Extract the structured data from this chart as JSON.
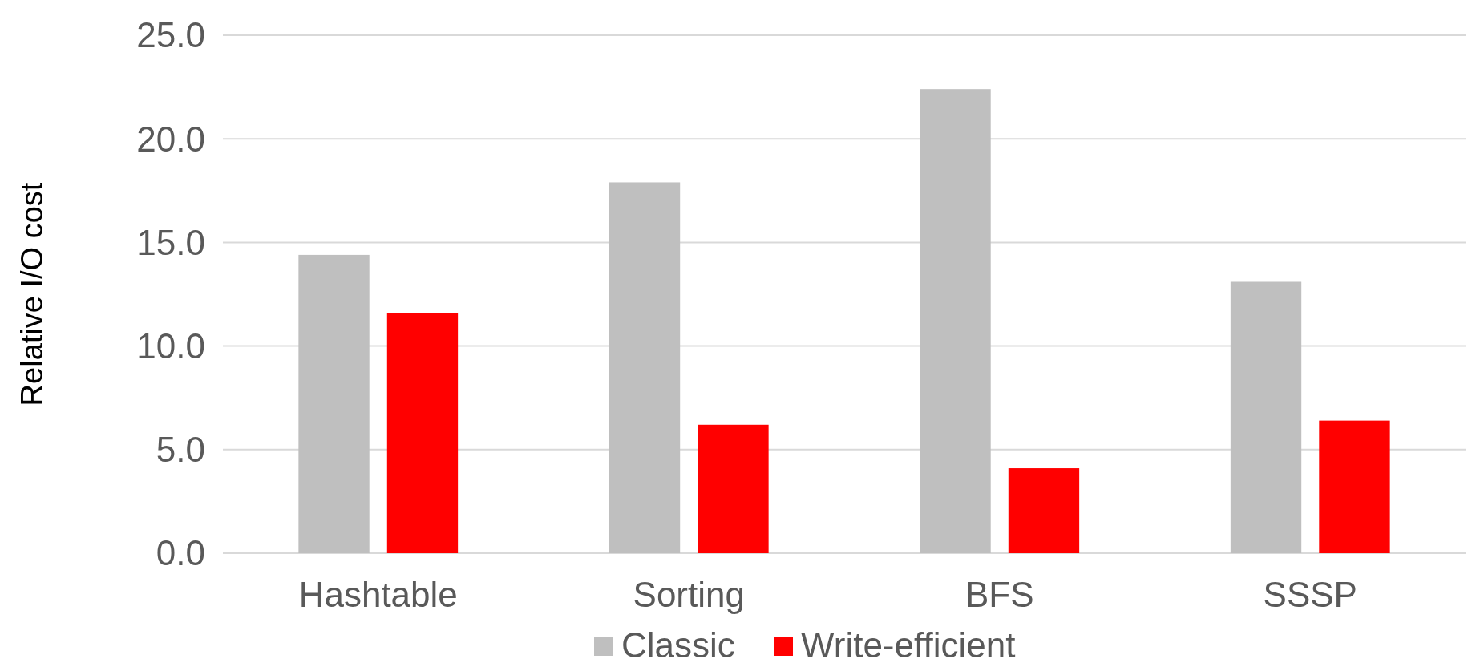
{
  "chart_data": {
    "type": "bar",
    "ylabel": "Relative I/O cost",
    "categories": [
      "Hashtable",
      "Sorting",
      "BFS",
      "SSSP"
    ],
    "series": [
      {
        "name": "Classic",
        "color": "#bfbfbf",
        "values": [
          14.4,
          17.9,
          22.4,
          13.1
        ]
      },
      {
        "name": "Write-efficient",
        "color": "#ff0000",
        "values": [
          11.6,
          6.2,
          4.1,
          6.4
        ]
      }
    ],
    "ylim": [
      0,
      25
    ],
    "yticks": [
      {
        "value": 0,
        "label": "0.0"
      },
      {
        "value": 5,
        "label": "5.0"
      },
      {
        "value": 10,
        "label": "10.0"
      },
      {
        "value": 15,
        "label": "15.0"
      },
      {
        "value": 20,
        "label": "20.0"
      },
      {
        "value": 25,
        "label": "25.0"
      }
    ],
    "grid": "y",
    "legend": "bottom"
  }
}
